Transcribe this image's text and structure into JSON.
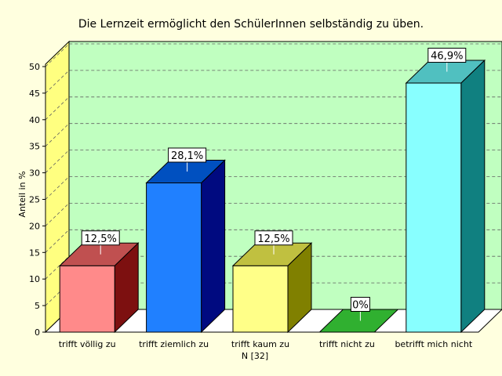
{
  "chart_data": {
    "type": "bar",
    "title": "Die Lernzeit ermöglicht den SchülerInnen selbständig zu üben.",
    "ylabel": "Anteil in %",
    "xlabel": "",
    "footnote": "N [32]",
    "ylim": [
      0,
      50
    ],
    "yticks": [
      0,
      5,
      10,
      15,
      20,
      25,
      30,
      35,
      40,
      45,
      50
    ],
    "grid": true,
    "categories": [
      "trifft völlig zu",
      "trifft ziemlich zu",
      "trifft kaum zu",
      "trifft nicht zu",
      "betrifft mich nicht"
    ],
    "values": [
      12.5,
      28.1,
      12.5,
      0,
      46.9
    ],
    "data_labels": [
      "12,5%",
      "28,1%",
      "12,5%",
      "0%",
      "46,9%"
    ],
    "bar_colors": [
      {
        "front": "#ff8a8a",
        "side": "#7d1010",
        "top": "#c05050"
      },
      {
        "front": "#2080ff",
        "side": "#000a80",
        "top": "#0050c0"
      },
      {
        "front": "#ffff88",
        "side": "#808000",
        "top": "#c0c040"
      },
      {
        "front": "#40d040",
        "side": "#108010",
        "top": "#30b030"
      },
      {
        "front": "#88ffff",
        "side": "#108080",
        "top": "#50c0c0"
      }
    ],
    "colors": {
      "background": "#ffffdf",
      "plot_back": "#c0ffc0",
      "plot_left_wall": "#ffff80",
      "plot_floor": "#ffffff",
      "grid": "#606060"
    }
  }
}
